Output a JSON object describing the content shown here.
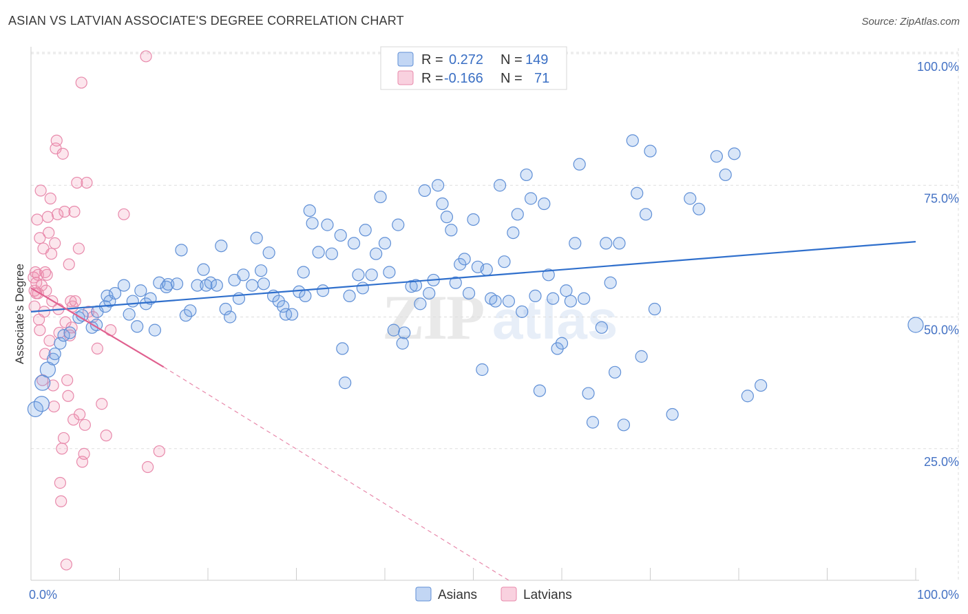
{
  "title": "ASIAN VS LATVIAN ASSOCIATE'S DEGREE CORRELATION CHART",
  "source": "Source: ZipAtlas.com",
  "colors": {
    "asian_fill": "rgba(120,164,230,0.28)",
    "asian_stroke": "#5f8fd6",
    "asian_line": "#2f6fcc",
    "latvian_fill": "rgba(240,140,175,0.22)",
    "latvian_stroke": "#e889ab",
    "latvian_line": "#e0608f",
    "tick": "#4472c4"
  },
  "legend": {
    "rows": [
      {
        "r_label": "R =",
        "r_value": "0.272",
        "n_label": "N =",
        "n_value": "149"
      },
      {
        "r_label": "R =",
        "r_value": "-0.166",
        "n_label": "N =",
        "n_value": "71"
      }
    ]
  },
  "chart_data": {
    "type": "scatter",
    "title": "ASIAN VS LATVIAN ASSOCIATE'S DEGREE CORRELATION CHART",
    "xlabel": "",
    "ylabel": "Associate's Degree",
    "xlim": [
      0,
      100
    ],
    "ylim": [
      0,
      100
    ],
    "x_tick_labels": [
      "0.0%",
      "100.0%"
    ],
    "y_ticks": [
      25,
      50,
      75,
      100
    ],
    "y_tick_labels": [
      "25.0%",
      "50.0%",
      "75.0%",
      "100.0%"
    ],
    "grid": true,
    "watermark": "ZIPatlas",
    "series": [
      {
        "name": "Asians",
        "r": 0.272,
        "n": 149,
        "trend": {
          "x": [
            0,
            100
          ],
          "y": [
            51.0,
            64.3
          ]
        },
        "points": [
          [
            0.5,
            32.5
          ],
          [
            1.2,
            33.5
          ],
          [
            1.3,
            37.5
          ],
          [
            1.9,
            40.0
          ],
          [
            2.5,
            42.0
          ],
          [
            2.7,
            43.0
          ],
          [
            3.3,
            45.0
          ],
          [
            3.7,
            46.5
          ],
          [
            4.4,
            47.0
          ],
          [
            5.4,
            49.9
          ],
          [
            5.8,
            50.3
          ],
          [
            6.9,
            48.0
          ],
          [
            7.4,
            48.5
          ],
          [
            7.5,
            51.0
          ],
          [
            8.4,
            52.0
          ],
          [
            8.6,
            54.0
          ],
          [
            8.9,
            53.0
          ],
          [
            9.5,
            54.5
          ],
          [
            10.5,
            56.0
          ],
          [
            11.1,
            50.5
          ],
          [
            11.5,
            53.0
          ],
          [
            12.0,
            48.2
          ],
          [
            12.4,
            55.0
          ],
          [
            13.0,
            52.5
          ],
          [
            13.5,
            53.5
          ],
          [
            14.0,
            47.5
          ],
          [
            14.5,
            56.5
          ],
          [
            15.3,
            55.7
          ],
          [
            15.5,
            56.2
          ],
          [
            16.5,
            56.3
          ],
          [
            17.0,
            62.7
          ],
          [
            17.5,
            50.3
          ],
          [
            18.0,
            51.2
          ],
          [
            18.8,
            56.0
          ],
          [
            19.5,
            59.0
          ],
          [
            19.8,
            56.0
          ],
          [
            20.3,
            56.5
          ],
          [
            21.0,
            56.0
          ],
          [
            21.5,
            63.5
          ],
          [
            22.0,
            51.5
          ],
          [
            22.5,
            50.0
          ],
          [
            23.0,
            57.0
          ],
          [
            23.5,
            53.5
          ],
          [
            24.0,
            58.0
          ],
          [
            25.0,
            56.0
          ],
          [
            25.5,
            65.0
          ],
          [
            26.0,
            58.8
          ],
          [
            26.3,
            56.3
          ],
          [
            26.9,
            62.2
          ],
          [
            27.4,
            54.0
          ],
          [
            28.0,
            53.0
          ],
          [
            28.5,
            52.0
          ],
          [
            28.8,
            50.5
          ],
          [
            29.5,
            50.5
          ],
          [
            30.3,
            54.8
          ],
          [
            30.8,
            58.5
          ],
          [
            31.0,
            54.0
          ],
          [
            31.5,
            70.2
          ],
          [
            31.8,
            67.8
          ],
          [
            32.5,
            62.3
          ],
          [
            33.0,
            55.0
          ],
          [
            33.5,
            67.5
          ],
          [
            34.0,
            62.0
          ],
          [
            35.0,
            65.5
          ],
          [
            35.2,
            44.0
          ],
          [
            35.5,
            37.5
          ],
          [
            36.0,
            54.0
          ],
          [
            36.5,
            64.0
          ],
          [
            37.0,
            58.0
          ],
          [
            37.5,
            55.5
          ],
          [
            37.8,
            66.5
          ],
          [
            38.5,
            58.0
          ],
          [
            39.0,
            62.0
          ],
          [
            39.5,
            72.8
          ],
          [
            40.0,
            64.0
          ],
          [
            40.5,
            58.5
          ],
          [
            41.0,
            47.5
          ],
          [
            41.5,
            67.5
          ],
          [
            42.0,
            45.0
          ],
          [
            42.2,
            47.0
          ],
          [
            43.0,
            55.8
          ],
          [
            43.5,
            56.0
          ],
          [
            44.0,
            52.5
          ],
          [
            44.5,
            74.0
          ],
          [
            45.0,
            54.5
          ],
          [
            45.5,
            57.0
          ],
          [
            46.0,
            75.0
          ],
          [
            46.5,
            71.5
          ],
          [
            47.0,
            69.0
          ],
          [
            47.5,
            66.5
          ],
          [
            48.0,
            56.5
          ],
          [
            48.5,
            60.0
          ],
          [
            49.0,
            61.0
          ],
          [
            49.5,
            54.5
          ],
          [
            50.0,
            68.5
          ],
          [
            50.5,
            59.5
          ],
          [
            51.0,
            40.0
          ],
          [
            51.5,
            59.0
          ],
          [
            52.0,
            53.5
          ],
          [
            52.5,
            53.0
          ],
          [
            53.0,
            75.0
          ],
          [
            53.5,
            60.5
          ],
          [
            54.0,
            53.0
          ],
          [
            54.5,
            66.0
          ],
          [
            55.0,
            69.5
          ],
          [
            55.5,
            51.0
          ],
          [
            56.0,
            77.0
          ],
          [
            56.5,
            72.5
          ],
          [
            57.0,
            54.0
          ],
          [
            57.5,
            36.0
          ],
          [
            58.0,
            71.5
          ],
          [
            58.5,
            58.0
          ],
          [
            59.0,
            53.5
          ],
          [
            59.5,
            44.0
          ],
          [
            60.0,
            45.0
          ],
          [
            60.5,
            55.0
          ],
          [
            61.0,
            53.0
          ],
          [
            61.5,
            64.0
          ],
          [
            62.0,
            79.0
          ],
          [
            62.5,
            53.5
          ],
          [
            63.0,
            35.5
          ],
          [
            63.5,
            30.0
          ],
          [
            64.5,
            48.0
          ],
          [
            65.0,
            64.0
          ],
          [
            65.5,
            56.5
          ],
          [
            66.0,
            39.5
          ],
          [
            66.5,
            64.0
          ],
          [
            67.0,
            29.5
          ],
          [
            68.0,
            83.5
          ],
          [
            68.5,
            73.5
          ],
          [
            69.0,
            42.5
          ],
          [
            69.5,
            69.5
          ],
          [
            70.0,
            81.5
          ],
          [
            70.5,
            51.5
          ],
          [
            72.5,
            31.5
          ],
          [
            74.5,
            72.5
          ],
          [
            75.5,
            70.5
          ],
          [
            77.5,
            80.5
          ],
          [
            78.5,
            77.0
          ],
          [
            79.5,
            81.0
          ],
          [
            81.0,
            35.0
          ],
          [
            82.5,
            37.0
          ],
          [
            100.0,
            48.5
          ]
        ],
        "sizes": {
          "large": [
            [
              0.5,
              32.5
            ],
            [
              1.2,
              33.5
            ],
            [
              1.3,
              37.5
            ],
            [
              1.9,
              40.0
            ],
            [
              100.0,
              48.5
            ]
          ]
        }
      },
      {
        "name": "Latvians",
        "r": -0.166,
        "n": 71,
        "trend": {
          "x": [
            0,
            15
          ],
          "y": [
            55.5,
            40.5
          ]
        },
        "trend_extension": {
          "x": [
            15,
            54
          ],
          "y": [
            40.5,
            0
          ]
        },
        "points": [
          [
            0.3,
            57.5
          ],
          [
            0.4,
            55.0
          ],
          [
            0.5,
            58.5
          ],
          [
            0.6,
            56.5
          ],
          [
            0.7,
            68.5
          ],
          [
            0.8,
            54.5
          ],
          [
            0.9,
            49.5
          ],
          [
            1.0,
            65.0
          ],
          [
            1.1,
            74.0
          ],
          [
            1.2,
            56.0
          ],
          [
            1.3,
            38.0
          ],
          [
            1.4,
            63.0
          ],
          [
            1.5,
            51.0
          ],
          [
            1.6,
            43.0
          ],
          [
            1.7,
            55.0
          ],
          [
            1.8,
            58.0
          ],
          [
            1.9,
            69.0
          ],
          [
            2.0,
            66.0
          ],
          [
            2.1,
            45.5
          ],
          [
            2.2,
            72.5
          ],
          [
            2.3,
            62.0
          ],
          [
            2.4,
            53.0
          ],
          [
            2.5,
            37.0
          ],
          [
            2.6,
            33.0
          ],
          [
            2.7,
            64.0
          ],
          [
            2.8,
            82.0
          ],
          [
            2.9,
            83.5
          ],
          [
            3.0,
            69.5
          ],
          [
            3.1,
            51.5
          ],
          [
            3.2,
            47.0
          ],
          [
            3.3,
            18.5
          ],
          [
            3.4,
            15.0
          ],
          [
            3.5,
            25.0
          ],
          [
            3.6,
            81.0
          ],
          [
            3.7,
            27.0
          ],
          [
            3.8,
            70.0
          ],
          [
            3.9,
            49.0
          ],
          [
            4.0,
            3.0
          ],
          [
            4.1,
            38.0
          ],
          [
            4.2,
            35.0
          ],
          [
            4.3,
            60.0
          ],
          [
            4.4,
            46.5
          ],
          [
            4.5,
            53.0
          ],
          [
            4.6,
            48.0
          ],
          [
            4.7,
            52.0
          ],
          [
            4.8,
            30.5
          ],
          [
            4.9,
            70.0
          ],
          [
            5.0,
            53.0
          ],
          [
            5.2,
            75.5
          ],
          [
            5.4,
            63.0
          ],
          [
            5.5,
            31.5
          ],
          [
            5.7,
            94.5
          ],
          [
            5.8,
            22.5
          ],
          [
            6.0,
            24.0
          ],
          [
            6.1,
            29.5
          ],
          [
            6.3,
            75.5
          ],
          [
            6.5,
            51.0
          ],
          [
            7.0,
            50.0
          ],
          [
            7.5,
            44.0
          ],
          [
            8.0,
            33.5
          ],
          [
            8.5,
            27.5
          ],
          [
            9.0,
            47.5
          ],
          [
            10.5,
            69.5
          ],
          [
            13.0,
            99.5
          ],
          [
            13.2,
            21.5
          ],
          [
            14.5,
            24.5
          ],
          [
            0.6,
            54.5
          ],
          [
            1.0,
            47.5
          ],
          [
            0.4,
            52.0
          ],
          [
            0.8,
            58.0
          ],
          [
            1.6,
            58.5
          ]
        ]
      }
    ],
    "legend_placement": "top-center"
  }
}
